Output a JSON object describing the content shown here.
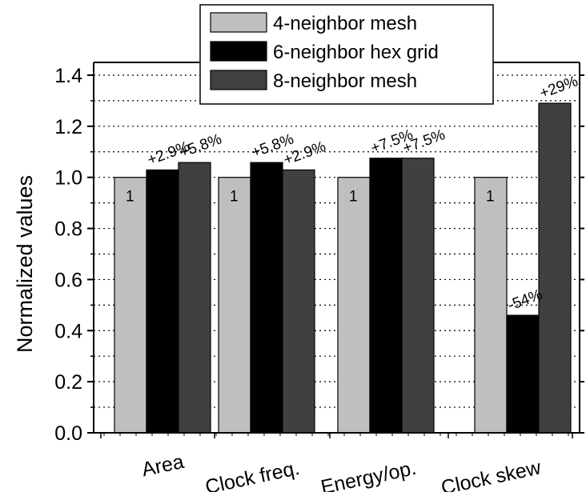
{
  "chart_data": {
    "type": "bar",
    "categories": [
      "Area",
      "Clock freq.",
      "Energy/op.",
      "Clock skew"
    ],
    "series": [
      {
        "name": "4-neighbor mesh",
        "color": "#bfbfbf",
        "values": [
          1,
          1,
          1,
          1
        ],
        "labels": [
          "1",
          "1",
          "1",
          "1"
        ]
      },
      {
        "name": "6-neighbor hex grid",
        "color": "#000000",
        "values": [
          1.029,
          1.058,
          1.075,
          0.46
        ],
        "labels": [
          "+2.9%",
          "+5.8%",
          "+7.5%",
          "-54%"
        ]
      },
      {
        "name": "8-neighbor mesh",
        "color": "#404040",
        "values": [
          1.058,
          1.029,
          1.075,
          1.29
        ],
        "labels": [
          "+5.8%",
          "+2.9%",
          "+7.5%",
          "+29%"
        ]
      }
    ],
    "ylabel": "Normalized values",
    "xlabel": "",
    "ylim": [
      0.0,
      1.45
    ],
    "yticks": [
      "0.0",
      "0.2",
      "0.4",
      "0.6",
      "0.8",
      "1.0",
      "1.2",
      "1.4"
    ],
    "grid": "horizontal dotted",
    "legend_position": "top"
  }
}
